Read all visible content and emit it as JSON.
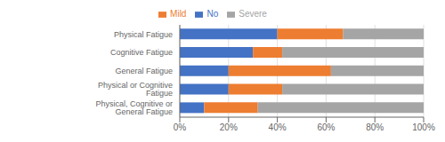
{
  "chart_data": {
    "type": "bar",
    "orientation": "horizontal",
    "stacked": true,
    "categories": [
      "Physical Fatigue",
      "Cognitive Fatigue",
      "General Fatigue",
      "Physical or Cognitive Fatigue",
      "Physical, Cognitive or General Fatigue"
    ],
    "series": [
      {
        "name": "No",
        "color": "#4472C4",
        "values": [
          40,
          30,
          20,
          20,
          10
        ]
      },
      {
        "name": "Mild",
        "color": "#ED7D31",
        "values": [
          27,
          12,
          42,
          22,
          22
        ]
      },
      {
        "name": "Severe",
        "color": "#A5A5A5",
        "values": [
          33,
          58,
          38,
          58,
          68
        ]
      }
    ],
    "xlim": [
      0,
      100
    ],
    "xticks": [
      {
        "value": 0,
        "label": "0%"
      },
      {
        "value": 20,
        "label": "20%"
      },
      {
        "value": 40,
        "label": "40%"
      },
      {
        "value": 60,
        "label": "60%"
      },
      {
        "value": 80,
        "label": "80%"
      },
      {
        "value": 100,
        "label": "100%"
      }
    ],
    "grid": true,
    "legend": "top"
  }
}
